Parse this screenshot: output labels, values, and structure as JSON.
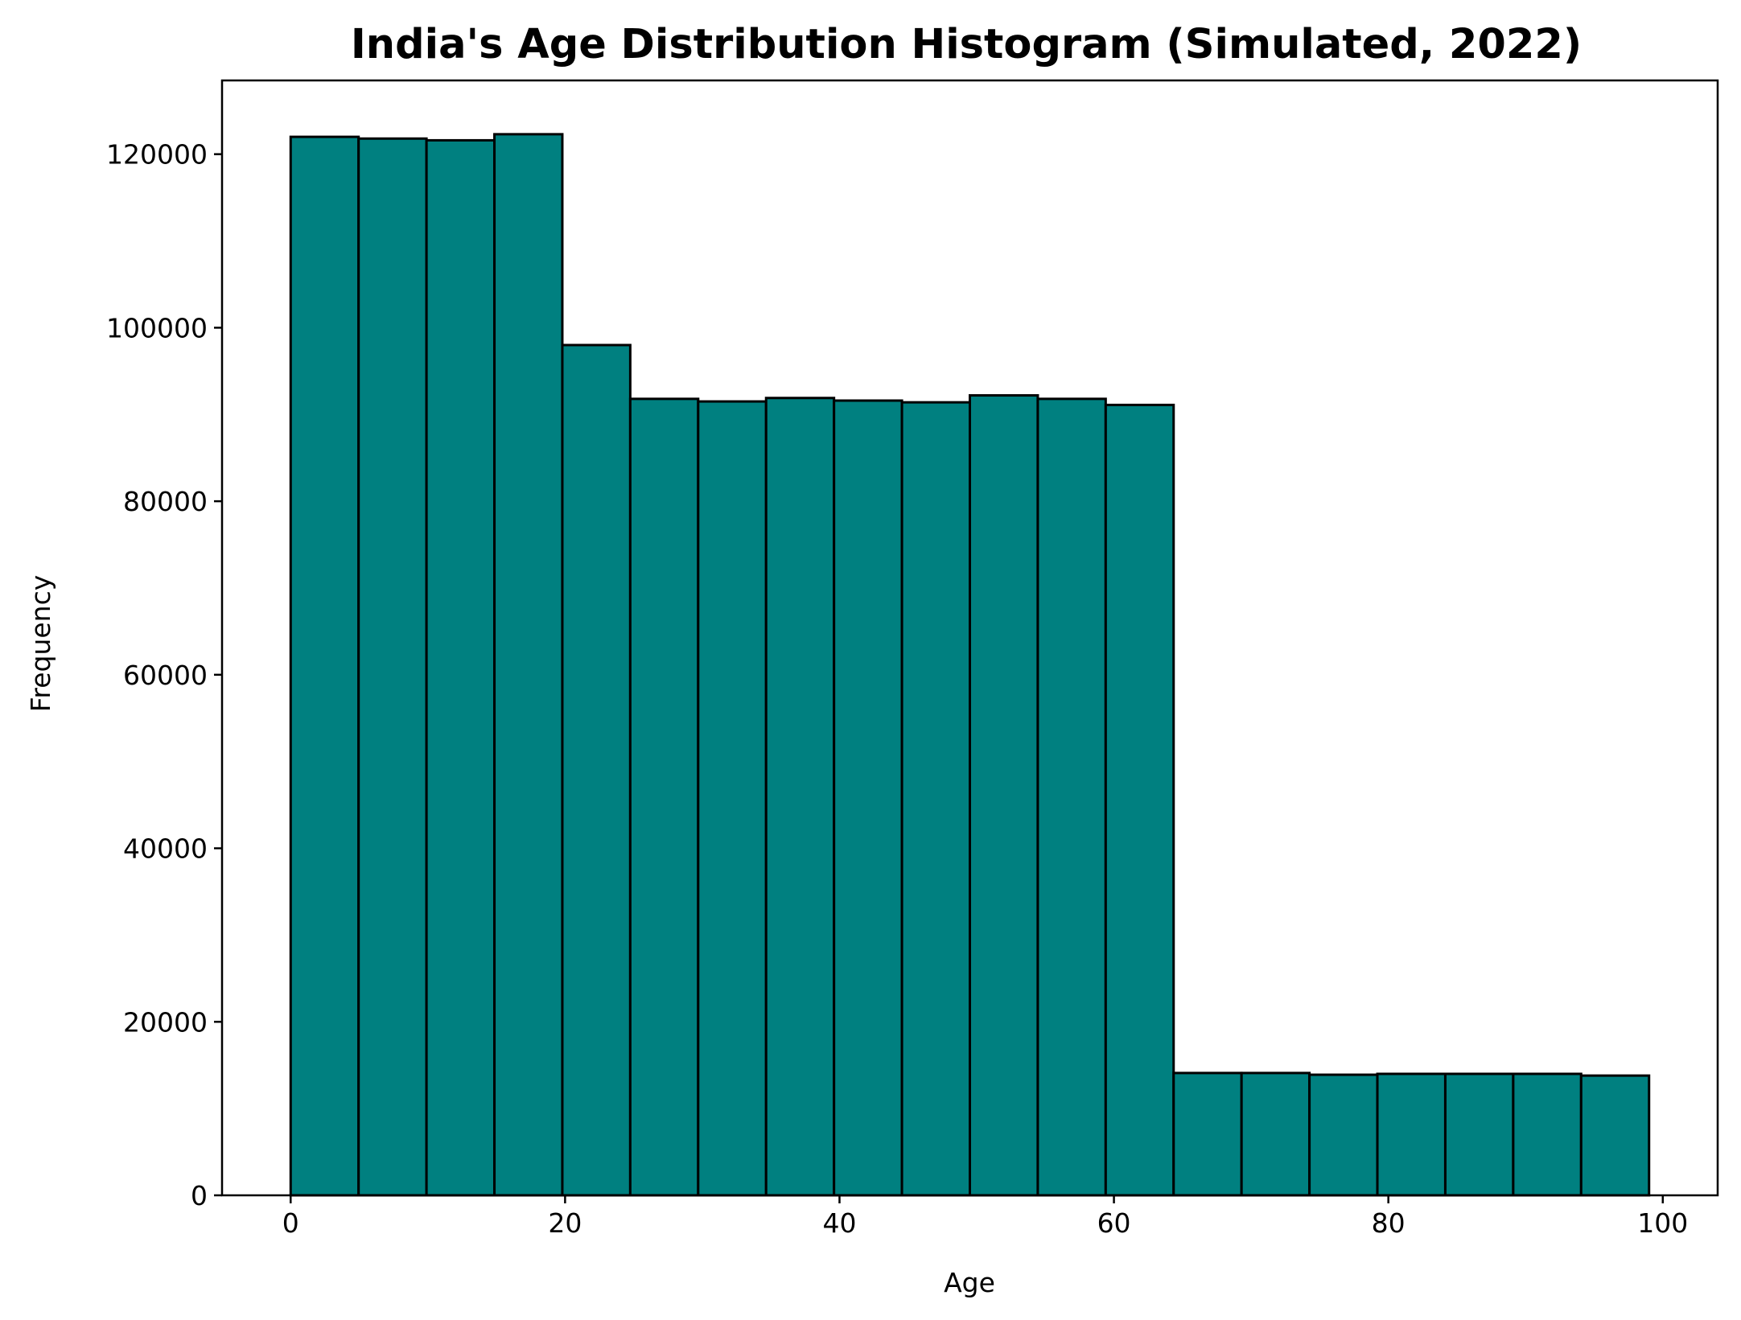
{
  "chart_data": {
    "type": "histogram",
    "title": "India's Age Distribution Histogram (Simulated, 2022)",
    "xlabel": "Age",
    "ylabel": "Frequency",
    "xlim": [
      -5,
      104
    ],
    "ylim": [
      0,
      128500
    ],
    "bar_color": "#008080",
    "edge_color": "#000000",
    "x_ticks": [
      0,
      20,
      40,
      60,
      80,
      100
    ],
    "x_tick_labels": [
      "0",
      "20",
      "40",
      "60",
      "80",
      "100"
    ],
    "y_ticks": [
      0,
      20000,
      40000,
      60000,
      80000,
      100000,
      120000
    ],
    "y_tick_labels": [
      "0",
      "20000",
      "40000",
      "60000",
      "80000",
      "100000",
      "120000"
    ],
    "bins": [
      {
        "start": 0.0,
        "end": 4.95,
        "value": 122000
      },
      {
        "start": 4.95,
        "end": 9.9,
        "value": 121800
      },
      {
        "start": 9.9,
        "end": 14.85,
        "value": 121600
      },
      {
        "start": 14.85,
        "end": 19.8,
        "value": 122300
      },
      {
        "start": 19.8,
        "end": 24.75,
        "value": 98000
      },
      {
        "start": 24.75,
        "end": 29.7,
        "value": 91800
      },
      {
        "start": 29.7,
        "end": 34.65,
        "value": 91500
      },
      {
        "start": 34.65,
        "end": 39.6,
        "value": 91900
      },
      {
        "start": 39.6,
        "end": 44.55,
        "value": 91600
      },
      {
        "start": 44.55,
        "end": 49.5,
        "value": 91400
      },
      {
        "start": 49.5,
        "end": 54.45,
        "value": 92200
      },
      {
        "start": 54.45,
        "end": 59.4,
        "value": 91800
      },
      {
        "start": 59.4,
        "end": 64.35,
        "value": 91100
      },
      {
        "start": 64.35,
        "end": 69.3,
        "value": 14100
      },
      {
        "start": 69.3,
        "end": 74.25,
        "value": 14100
      },
      {
        "start": 74.25,
        "end": 79.2,
        "value": 13900
      },
      {
        "start": 79.2,
        "end": 84.15,
        "value": 14000
      },
      {
        "start": 84.15,
        "end": 89.1,
        "value": 14000
      },
      {
        "start": 89.1,
        "end": 94.05,
        "value": 14000
      },
      {
        "start": 94.05,
        "end": 99.0,
        "value": 13800
      }
    ]
  }
}
